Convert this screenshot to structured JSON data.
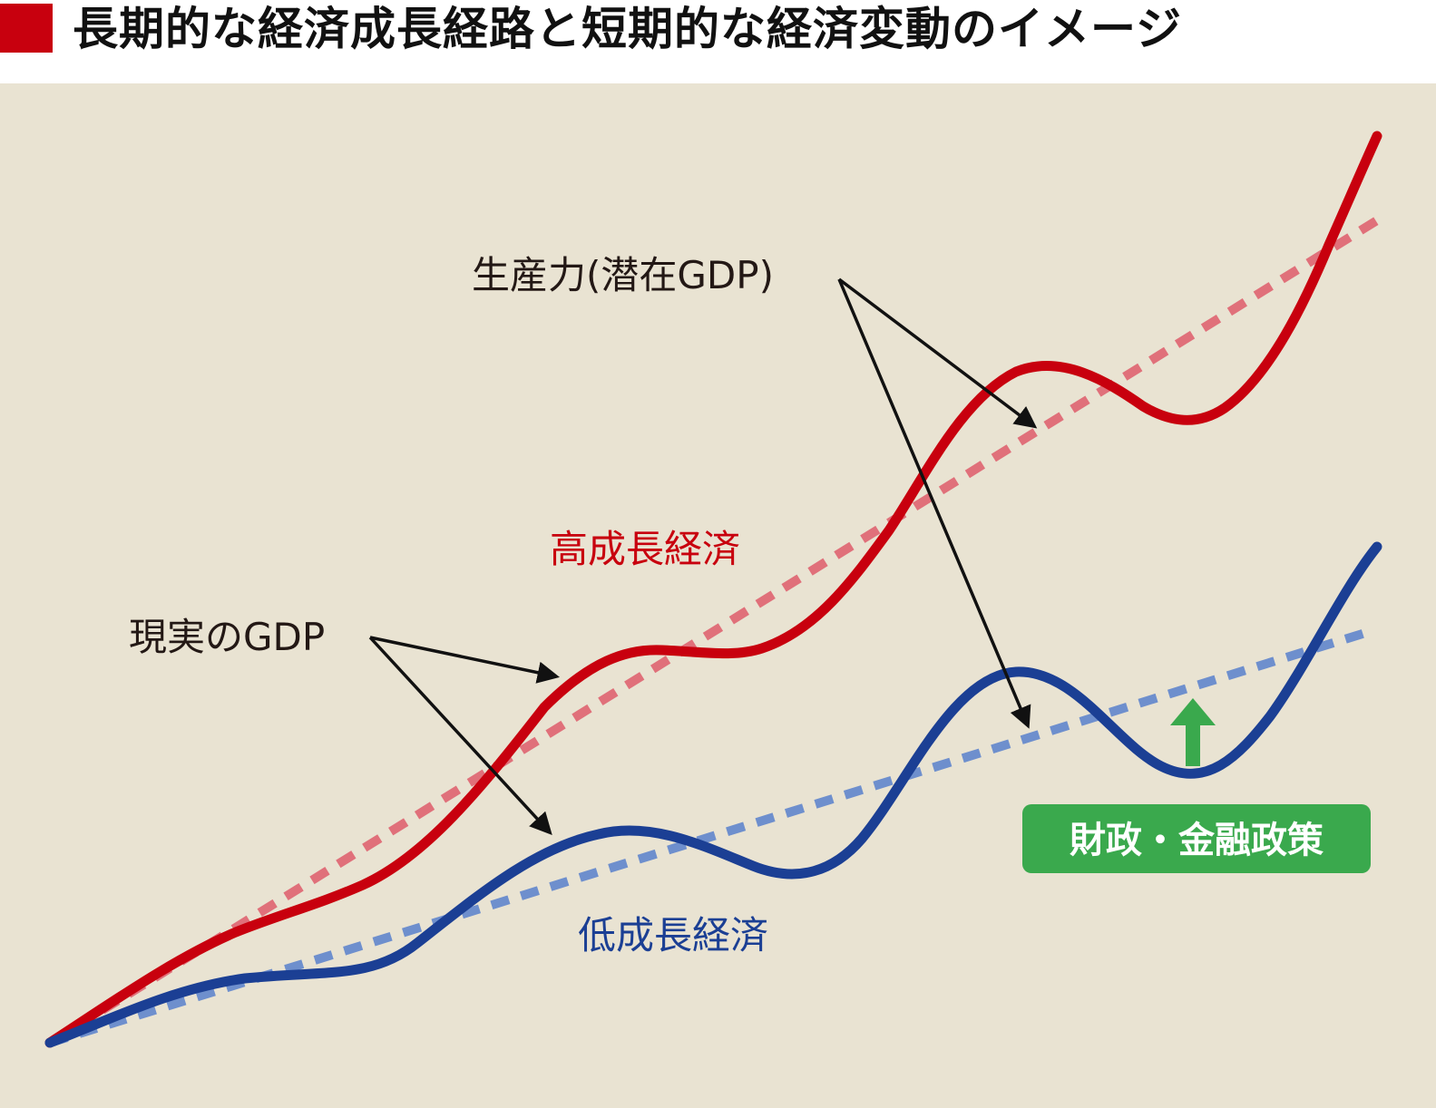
{
  "title": "長期的な経済成長経路と短期的な経済変動のイメージ",
  "labels": {
    "potential_gdp": "生産力(潜在GDP)",
    "actual_gdp": "現実のGDP",
    "high_growth": "高成長経済",
    "low_growth": "低成長経済",
    "policy": "財政・金融政策"
  },
  "colors": {
    "accent": "#c8000e",
    "background": "#e9e3d2",
    "high_growth_line": "#c8000e",
    "high_growth_trend": "#e0707a",
    "low_growth_line": "#1b3f94",
    "low_growth_trend": "#6e8fcd",
    "policy": "#3aa94d",
    "arrow": "#111111"
  }
}
